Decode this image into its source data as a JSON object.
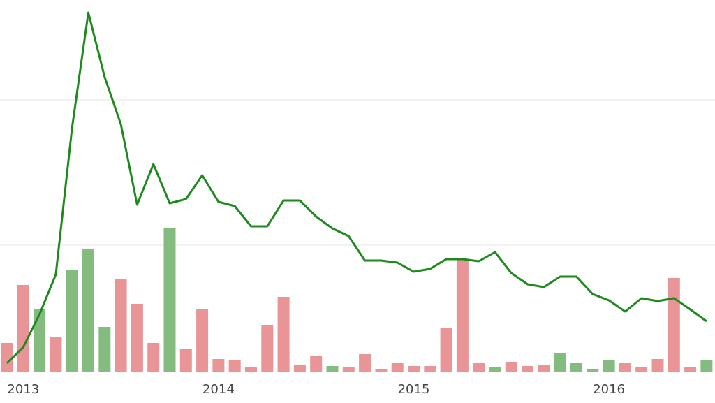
{
  "chart_data": {
    "type": "bar",
    "categories": [
      null,
      "2013",
      null,
      null,
      null,
      null,
      null,
      null,
      null,
      null,
      null,
      null,
      null,
      "2014",
      null,
      null,
      null,
      null,
      null,
      null,
      null,
      null,
      null,
      null,
      null,
      "2015",
      null,
      null,
      null,
      null,
      null,
      null,
      null,
      null,
      null,
      null,
      null,
      "2016",
      null,
      null,
      null,
      null,
      null,
      null
    ],
    "series": [
      {
        "type": "bar",
        "values": [
          42,
          125,
          90,
          50,
          146,
          177,
          65,
          133,
          98,
          42,
          206,
          34,
          90,
          19,
          17,
          7,
          67,
          108,
          11,
          23,
          9,
          7,
          26,
          5,
          13,
          9,
          9,
          63,
          161,
          13,
          7,
          15,
          9,
          10,
          27,
          13,
          5,
          17,
          13,
          7,
          19,
          135,
          7,
          17
        ],
        "colors": [
          "#e99497",
          "#e99497",
          "#84bb7f",
          "#e99497",
          "#84bb7f",
          "#84bb7f",
          "#84bb7f",
          "#e99497",
          "#e99497",
          "#e99497",
          "#84bb7f",
          "#e99497",
          "#e99497",
          "#e99497",
          "#e99497",
          "#e99497",
          "#e99497",
          "#e99497",
          "#e99497",
          "#e99497",
          "#84bb7f",
          "#e99497",
          "#e99497",
          "#e99497",
          "#e99497",
          "#e99497",
          "#e99497",
          "#e99497",
          "#e99497",
          "#e99497",
          "#84bb7f",
          "#e99497",
          "#e99497",
          "#e99497",
          "#84bb7f",
          "#84bb7f",
          "#84bb7f",
          "#84bb7f",
          "#e99497",
          "#e99497",
          "#e99497",
          "#e99497",
          "#e99497",
          "#84bb7f"
        ]
      },
      {
        "type": "line",
        "color": "#1e8a1e",
        "values": [
          13,
          36,
          83,
          140,
          350,
          515,
          423,
          355,
          240,
          298,
          242,
          248,
          282,
          244,
          238,
          209,
          209,
          246,
          246,
          223,
          206,
          195,
          160,
          160,
          157,
          144,
          148,
          162,
          162,
          159,
          172,
          142,
          126,
          122,
          137,
          137,
          112,
          103,
          87,
          106,
          102,
          106,
          90,
          73
        ]
      }
    ],
    "ylim": [
      0,
      533
    ],
    "gridlines": [
      182,
      390
    ],
    "grid": true
  }
}
